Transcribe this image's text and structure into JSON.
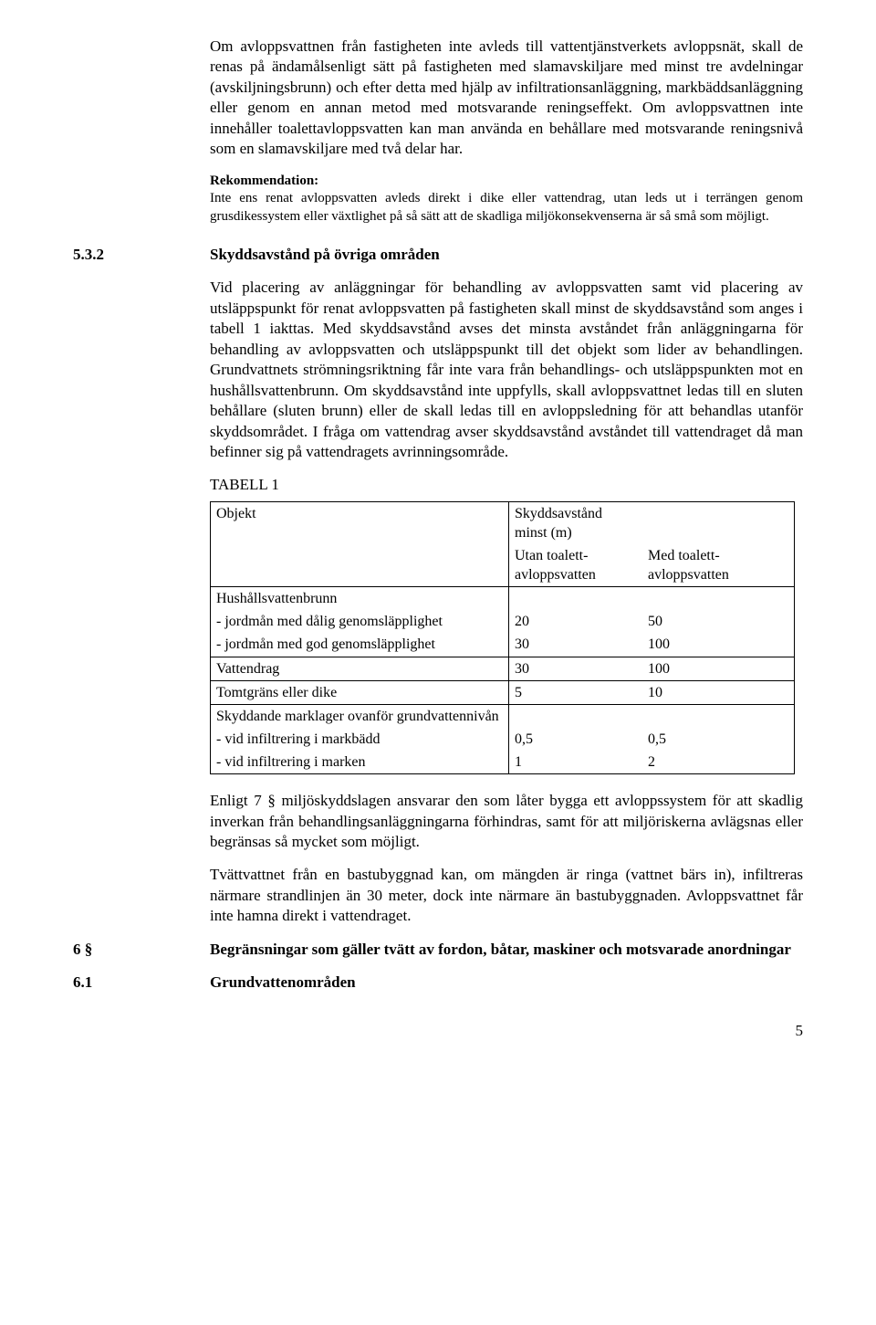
{
  "para1": "Om avloppsvattnen från fastigheten inte avleds till vattentjänstverkets avloppsnät, skall de renas på ändamålsenligt sätt på fastigheten med slamavskiljare med minst tre avdelningar (avskiljningsbrunn) och efter detta med hjälp av infiltrationsanläggning, markbäddsanläggning eller genom en annan metod med motsvarande reningseffekt. Om avloppsvattnen inte innehåller toalettavloppsvatten kan man använda en behållare med motsvarande reningsnivå som en slamavskiljare med två delar har.",
  "rec_head": "Rekommendation:",
  "rec_body": "Inte ens renat avloppsvatten avleds direkt i dike eller vattendrag, utan leds ut i terrängen genom grusdikessystem eller växtlighet på så sätt att de skadliga miljökonsekvenserna är så små som möjligt.",
  "sec532_num": "5.3.2",
  "sec532_title": "Skyddsavstånd på övriga områden",
  "para2": "Vid placering av anläggningar för behandling av avloppsvatten samt vid placering av utsläppspunkt för renat avloppsvatten på fastigheten skall minst de skyddsavstånd som anges i tabell 1 iakttas. Med skyddsavstånd avses det minsta avståndet från anläggningarna för behandling av avloppsvatten och utsläppspunkt till det objekt som lider av behandlingen. Grundvattnets strömningsriktning får inte vara från behandlings- och utsläppspunkten mot en hushållsvattenbrunn. Om skyddsavstånd inte uppfylls, skall avloppsvattnet ledas till en sluten behållare (sluten brunn) eller de skall ledas till en avloppsledning för att behandlas utanför skyddsområdet. I fråga om vattendrag avser skyddsavstånd avståndet till vattendraget då man befinner sig på vattendragets avrinningsområde.",
  "table_caption": "TABELL 1",
  "table": {
    "col_obj": "Objekt",
    "col_head": "Skyddsavstånd minst (m)",
    "sub_a_1": "Utan toalett-",
    "sub_a_2": "avloppsvatten",
    "sub_b_1": "Med toalett-",
    "sub_b_2": "avloppsvatten",
    "rows": [
      {
        "label": "Hushållsvattenbrunn",
        "a": "",
        "b": ""
      },
      {
        "label": "- jordmån med dålig genomsläpplighet",
        "a": "20",
        "b": "50"
      },
      {
        "label": "- jordmån med god genomsläpplighet",
        "a": "30",
        "b": "100"
      },
      {
        "label": "Vattendrag",
        "a": "30",
        "b": "100"
      },
      {
        "label": "Tomtgräns eller dike",
        "a": "5",
        "b": "10"
      },
      {
        "label": "Skyddande marklager ovanför grundvattennivån",
        "a": "",
        "b": ""
      },
      {
        "label": "- vid infiltrering i markbädd",
        "a": "0,5",
        "b": "0,5"
      },
      {
        "label": "- vid infiltrering i marken",
        "a": "1",
        "b": "2"
      }
    ]
  },
  "para3": "Enligt 7 § miljöskyddslagen ansvarar den som låter bygga ett avloppssystem för att skadlig inverkan från behandlingsanläggningarna förhindras, samt för att miljöriskerna avlägsnas eller begränsas så mycket som möjligt.",
  "para4": "Tvättvattnet från en bastubyggnad kan, om mängden är ringa (vattnet bärs in), infiltreras närmare strandlinjen än 30 meter, dock inte närmare än bastubyggnaden. Avloppsvattnet får inte hamna direkt i vattendraget.",
  "sec6_num": "6 §",
  "sec6_title": "Begränsningar som gäller tvätt av fordon, båtar, maskiner och motsvarade anordningar",
  "sec61_num": "6.1",
  "sec61_title": "Grundvattenområden",
  "page_number": "5"
}
